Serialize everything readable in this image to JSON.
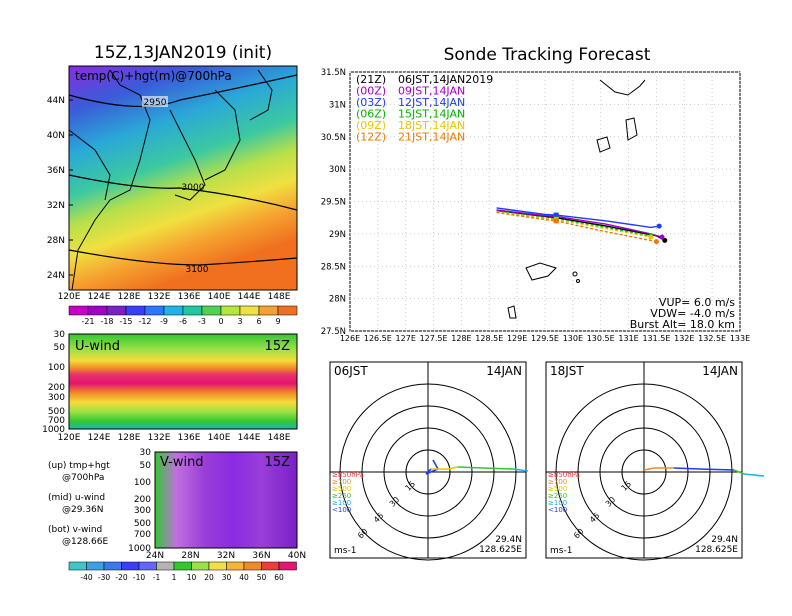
{
  "left": {
    "title": "15Z,13JAN2019 (init)",
    "map_label": "temp(C)+hgt(m)@700hPa",
    "contours": [
      "2950",
      "3000",
      "3100"
    ],
    "lat_ticks": [
      "44N",
      "40N",
      "36N",
      "32N",
      "28N",
      "24N"
    ],
    "lon_ticks": [
      "120E",
      "124E",
      "128E",
      "132E",
      "136E",
      "140E",
      "144E",
      "148E"
    ],
    "temp_colorbar": [
      "-21",
      "-18",
      "-15",
      "-12",
      "-9",
      "-6",
      "-3",
      "0",
      "3",
      "6",
      "9"
    ],
    "uwind_label": "U-wind",
    "uwind_time": "15Z",
    "p_ticks": [
      "30",
      "50",
      "100",
      "200",
      "300",
      "500",
      "700",
      "1000"
    ],
    "vwind_label": "V-wind",
    "vwind_time": "15Z",
    "vwind_x": [
      "24N",
      "28N",
      "32N",
      "36N",
      "40N"
    ],
    "vwind_p": [
      "30",
      "50",
      "100",
      "200",
      "300",
      "500",
      "700",
      "1000"
    ],
    "wind_colorbar": [
      "-40",
      "-30",
      "-20",
      "-10",
      "-1",
      "1",
      "10",
      "20",
      "30",
      "40",
      "50",
      "60"
    ],
    "legend": [
      {
        "a": "(up) tmp+hgt",
        "b": "@700hPa"
      },
      {
        "a": "(mid) u-wind",
        "b": "@29.36N"
      },
      {
        "a": "(bot) v-wind",
        "b": "@128.66E"
      }
    ]
  },
  "track": {
    "title": "Sonde Tracking Forecast",
    "launches": [
      {
        "utc": "(21Z)",
        "jst": "06JST,14JAN2019",
        "color": "#000000"
      },
      {
        "utc": "(00Z)",
        "jst": "09JST,14JAN",
        "color": "#a000c8"
      },
      {
        "utc": "(03Z)",
        "jst": "12JST,14JAN",
        "color": "#1e3cff"
      },
      {
        "utc": "(06Z)",
        "jst": "15JST,14JAN",
        "color": "#00b400"
      },
      {
        "utc": "(09Z)",
        "jst": "18JST,14JAN",
        "color": "#e6c800"
      },
      {
        "utc": "(12Z)",
        "jst": "21JST,14JAN",
        "color": "#f07800"
      }
    ],
    "lat_ticks": [
      "31.5N",
      "31N",
      "30.5N",
      "30N",
      "29.5N",
      "29N",
      "28.5N",
      "28N",
      "27.5N"
    ],
    "lon_ticks": [
      "126E",
      "126.5E",
      "127E",
      "127.5E",
      "128E",
      "128.5E",
      "129E",
      "129.5E",
      "130E",
      "130.5E",
      "131E",
      "131.5E",
      "132E",
      "132.5E",
      "133E"
    ],
    "vup": "VUP= 6.0 m/s",
    "vdw": "VDW= -4.0 m/s",
    "burst": "Burst Alt= 18.0 km"
  },
  "chart_data": [
    {
      "type": "line",
      "title": "Sonde Tracking Forecast",
      "xlim": [
        126,
        133
      ],
      "ylim": [
        27.5,
        31.5
      ],
      "series": [
        {
          "name": "(21Z) 06JST,14JAN2019",
          "x": [
            128.63,
            129.5,
            129.7,
            130.6,
            131.5,
            131.65
          ],
          "y": [
            29.36,
            29.27,
            29.25,
            29.12,
            28.97,
            28.9
          ]
        },
        {
          "name": "(00Z) 09JST,14JAN",
          "x": [
            128.63,
            129.5,
            129.7,
            130.6,
            131.4,
            131.6
          ],
          "y": [
            29.37,
            29.28,
            29.27,
            29.15,
            29.0,
            28.95
          ]
        },
        {
          "name": "(03Z) 12JST,14JAN",
          "x": [
            128.63,
            129.5,
            129.7,
            130.6,
            131.4,
            131.55
          ],
          "y": [
            29.4,
            29.3,
            29.29,
            29.2,
            29.1,
            29.12
          ]
        },
        {
          "name": "(06Z) 15JST,14JAN",
          "x": [
            128.63,
            129.5,
            129.7,
            130.6,
            131.4
          ],
          "y": [
            29.35,
            29.25,
            29.23,
            29.1,
            28.97
          ]
        },
        {
          "name": "(09Z) 18JST,14JAN",
          "x": [
            128.63,
            129.5,
            129.7,
            130.6,
            131.4
          ],
          "y": [
            29.34,
            29.24,
            29.22,
            29.08,
            28.95
          ]
        },
        {
          "name": "(12Z) 21JST,14JAN",
          "x": [
            128.63,
            129.5,
            129.7,
            130.5,
            131.5
          ],
          "y": [
            29.33,
            29.22,
            29.2,
            29.05,
            28.88
          ]
        }
      ]
    }
  ],
  "hodo": [
    {
      "left": "06JST",
      "right": "14JAN",
      "rings": [
        "15",
        "30",
        "45",
        "60"
      ],
      "unit": "ms-1",
      "lat": "29.4N",
      "lon": "128.625E",
      "levels": [
        "≥850hPa",
        "≥700",
        "≥500",
        "≥250",
        "≥100",
        "<100"
      ]
    },
    {
      "left": "18JST",
      "right": "14JAN",
      "rings": [
        "15",
        "30",
        "45",
        "60"
      ],
      "unit": "ms-1",
      "lat": "29.4N",
      "lon": "128.625E",
      "levels": [
        "≥850hPa",
        "≥700",
        "≥500",
        "≥250",
        "≥100",
        "<100"
      ]
    }
  ]
}
